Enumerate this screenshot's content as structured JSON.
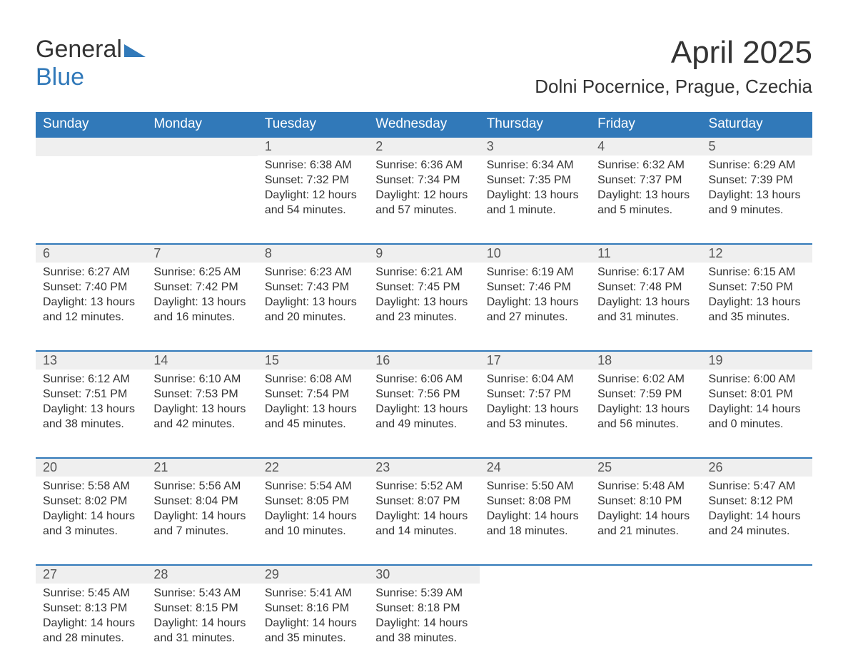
{
  "logo": {
    "text1": "General",
    "text2": "Blue"
  },
  "title": "April 2025",
  "location": "Dolni Pocernice, Prague, Czechia",
  "colors": {
    "brand_blue": "#3179b9",
    "header_text": "#ffffff",
    "body_text": "#333333",
    "daynum_bg": "#efefef",
    "background": "#ffffff"
  },
  "day_headers": [
    "Sunday",
    "Monday",
    "Tuesday",
    "Wednesday",
    "Thursday",
    "Friday",
    "Saturday"
  ],
  "weeks": [
    [
      null,
      null,
      {
        "n": "1",
        "sr": "6:38 AM",
        "ss": "7:32 PM",
        "dl": "12 hours and 54 minutes."
      },
      {
        "n": "2",
        "sr": "6:36 AM",
        "ss": "7:34 PM",
        "dl": "12 hours and 57 minutes."
      },
      {
        "n": "3",
        "sr": "6:34 AM",
        "ss": "7:35 PM",
        "dl": "13 hours and 1 minute."
      },
      {
        "n": "4",
        "sr": "6:32 AM",
        "ss": "7:37 PM",
        "dl": "13 hours and 5 minutes."
      },
      {
        "n": "5",
        "sr": "6:29 AM",
        "ss": "7:39 PM",
        "dl": "13 hours and 9 minutes."
      }
    ],
    [
      {
        "n": "6",
        "sr": "6:27 AM",
        "ss": "7:40 PM",
        "dl": "13 hours and 12 minutes."
      },
      {
        "n": "7",
        "sr": "6:25 AM",
        "ss": "7:42 PM",
        "dl": "13 hours and 16 minutes."
      },
      {
        "n": "8",
        "sr": "6:23 AM",
        "ss": "7:43 PM",
        "dl": "13 hours and 20 minutes."
      },
      {
        "n": "9",
        "sr": "6:21 AM",
        "ss": "7:45 PM",
        "dl": "13 hours and 23 minutes."
      },
      {
        "n": "10",
        "sr": "6:19 AM",
        "ss": "7:46 PM",
        "dl": "13 hours and 27 minutes."
      },
      {
        "n": "11",
        "sr": "6:17 AM",
        "ss": "7:48 PM",
        "dl": "13 hours and 31 minutes."
      },
      {
        "n": "12",
        "sr": "6:15 AM",
        "ss": "7:50 PM",
        "dl": "13 hours and 35 minutes."
      }
    ],
    [
      {
        "n": "13",
        "sr": "6:12 AM",
        "ss": "7:51 PM",
        "dl": "13 hours and 38 minutes."
      },
      {
        "n": "14",
        "sr": "6:10 AM",
        "ss": "7:53 PM",
        "dl": "13 hours and 42 minutes."
      },
      {
        "n": "15",
        "sr": "6:08 AM",
        "ss": "7:54 PM",
        "dl": "13 hours and 45 minutes."
      },
      {
        "n": "16",
        "sr": "6:06 AM",
        "ss": "7:56 PM",
        "dl": "13 hours and 49 minutes."
      },
      {
        "n": "17",
        "sr": "6:04 AM",
        "ss": "7:57 PM",
        "dl": "13 hours and 53 minutes."
      },
      {
        "n": "18",
        "sr": "6:02 AM",
        "ss": "7:59 PM",
        "dl": "13 hours and 56 minutes."
      },
      {
        "n": "19",
        "sr": "6:00 AM",
        "ss": "8:01 PM",
        "dl": "14 hours and 0 minutes."
      }
    ],
    [
      {
        "n": "20",
        "sr": "5:58 AM",
        "ss": "8:02 PM",
        "dl": "14 hours and 3 minutes."
      },
      {
        "n": "21",
        "sr": "5:56 AM",
        "ss": "8:04 PM",
        "dl": "14 hours and 7 minutes."
      },
      {
        "n": "22",
        "sr": "5:54 AM",
        "ss": "8:05 PM",
        "dl": "14 hours and 10 minutes."
      },
      {
        "n": "23",
        "sr": "5:52 AM",
        "ss": "8:07 PM",
        "dl": "14 hours and 14 minutes."
      },
      {
        "n": "24",
        "sr": "5:50 AM",
        "ss": "8:08 PM",
        "dl": "14 hours and 18 minutes."
      },
      {
        "n": "25",
        "sr": "5:48 AM",
        "ss": "8:10 PM",
        "dl": "14 hours and 21 minutes."
      },
      {
        "n": "26",
        "sr": "5:47 AM",
        "ss": "8:12 PM",
        "dl": "14 hours and 24 minutes."
      }
    ],
    [
      {
        "n": "27",
        "sr": "5:45 AM",
        "ss": "8:13 PM",
        "dl": "14 hours and 28 minutes."
      },
      {
        "n": "28",
        "sr": "5:43 AM",
        "ss": "8:15 PM",
        "dl": "14 hours and 31 minutes."
      },
      {
        "n": "29",
        "sr": "5:41 AM",
        "ss": "8:16 PM",
        "dl": "14 hours and 35 minutes."
      },
      {
        "n": "30",
        "sr": "5:39 AM",
        "ss": "8:18 PM",
        "dl": "14 hours and 38 minutes."
      },
      null,
      null,
      null
    ]
  ],
  "labels": {
    "sunrise": "Sunrise: ",
    "sunset": "Sunset: ",
    "daylight": "Daylight: "
  }
}
